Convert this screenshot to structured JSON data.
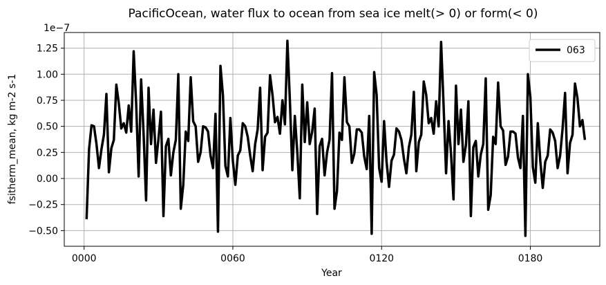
{
  "chart_data": {
    "type": "line",
    "title": "PacificOcean, water flux to ocean from sea ice melt(> 0) or form(< 0)",
    "xlabel": "Year",
    "ylabel": "fsitherm_mean, kg m-2 s-1",
    "y_scale_label": "1e−7",
    "xlim": [
      -8,
      208
    ],
    "ylim": [
      -0.65,
      1.4
    ],
    "x_ticks": [
      {
        "value": 0,
        "label": "0000"
      },
      {
        "value": 60,
        "label": "0060"
      },
      {
        "value": 120,
        "label": "0120"
      },
      {
        "value": 180,
        "label": "0180"
      }
    ],
    "y_ticks": [
      {
        "value": -0.5,
        "label": "−0.50"
      },
      {
        "value": -0.25,
        "label": "−0.25"
      },
      {
        "value": 0.0,
        "label": "0.00"
      },
      {
        "value": 0.25,
        "label": "0.25"
      },
      {
        "value": 0.5,
        "label": "0.50"
      },
      {
        "value": 0.75,
        "label": "0.75"
      },
      {
        "value": 1.0,
        "label": "1.00"
      },
      {
        "value": 1.25,
        "label": "1.25"
      }
    ],
    "grid": true,
    "legend_position": "top-right",
    "series": [
      {
        "name": "063",
        "color": "#000000",
        "x_start": 1,
        "x_step": 1,
        "values": [
          -0.39,
          0.28,
          0.51,
          0.5,
          0.33,
          0.1,
          0.28,
          0.42,
          0.81,
          0.06,
          0.29,
          0.37,
          0.9,
          0.72,
          0.48,
          0.53,
          0.44,
          0.7,
          0.45,
          1.22,
          0.72,
          0.02,
          0.95,
          0.43,
          -0.21,
          0.87,
          0.33,
          0.66,
          0.15,
          0.38,
          0.64,
          -0.36,
          0.31,
          0.38,
          0.03,
          0.25,
          0.37,
          1.0,
          -0.29,
          -0.06,
          0.45,
          0.36,
          0.97,
          0.55,
          0.5,
          0.16,
          0.25,
          0.5,
          0.49,
          0.45,
          0.22,
          0.1,
          0.62,
          -0.51,
          1.08,
          0.8,
          0.12,
          0.02,
          0.58,
          0.17,
          -0.06,
          0.22,
          0.27,
          0.53,
          0.5,
          0.4,
          0.22,
          0.07,
          0.33,
          0.47,
          0.87,
          0.08,
          0.4,
          0.44,
          0.99,
          0.8,
          0.54,
          0.59,
          0.43,
          0.75,
          0.52,
          1.32,
          0.75,
          0.08,
          0.6,
          0.25,
          -0.19,
          0.9,
          0.35,
          0.73,
          0.33,
          0.45,
          0.67,
          -0.34,
          0.31,
          0.38,
          0.03,
          0.25,
          0.37,
          1.01,
          -0.29,
          -0.12,
          0.44,
          0.37,
          0.97,
          0.54,
          0.5,
          0.15,
          0.24,
          0.47,
          0.47,
          0.44,
          0.21,
          0.09,
          0.6,
          -0.53,
          1.02,
          0.8,
          0.1,
          -0.03,
          0.55,
          0.16,
          -0.08,
          0.17,
          0.23,
          0.48,
          0.45,
          0.37,
          0.19,
          0.05,
          0.3,
          0.42,
          0.83,
          0.07,
          0.35,
          0.42,
          0.93,
          0.8,
          0.53,
          0.58,
          0.43,
          0.74,
          0.5,
          1.31,
          0.7,
          0.05,
          0.55,
          0.24,
          -0.2,
          0.89,
          0.33,
          0.66,
          0.16,
          0.32,
          0.74,
          -0.36,
          0.3,
          0.36,
          0.02,
          0.23,
          0.33,
          0.96,
          -0.3,
          -0.16,
          0.4,
          0.33,
          0.92,
          0.5,
          0.46,
          0.13,
          0.21,
          0.45,
          0.45,
          0.43,
          0.2,
          0.1,
          0.6,
          -0.55,
          1.0,
          0.78,
          0.11,
          -0.04,
          0.53,
          0.17,
          -0.09,
          0.16,
          0.22,
          0.47,
          0.44,
          0.36,
          0.1,
          0.22,
          0.48,
          0.82,
          0.05,
          0.34,
          0.42,
          0.91,
          0.77,
          0.5,
          0.56,
          0.37
        ]
      }
    ]
  }
}
